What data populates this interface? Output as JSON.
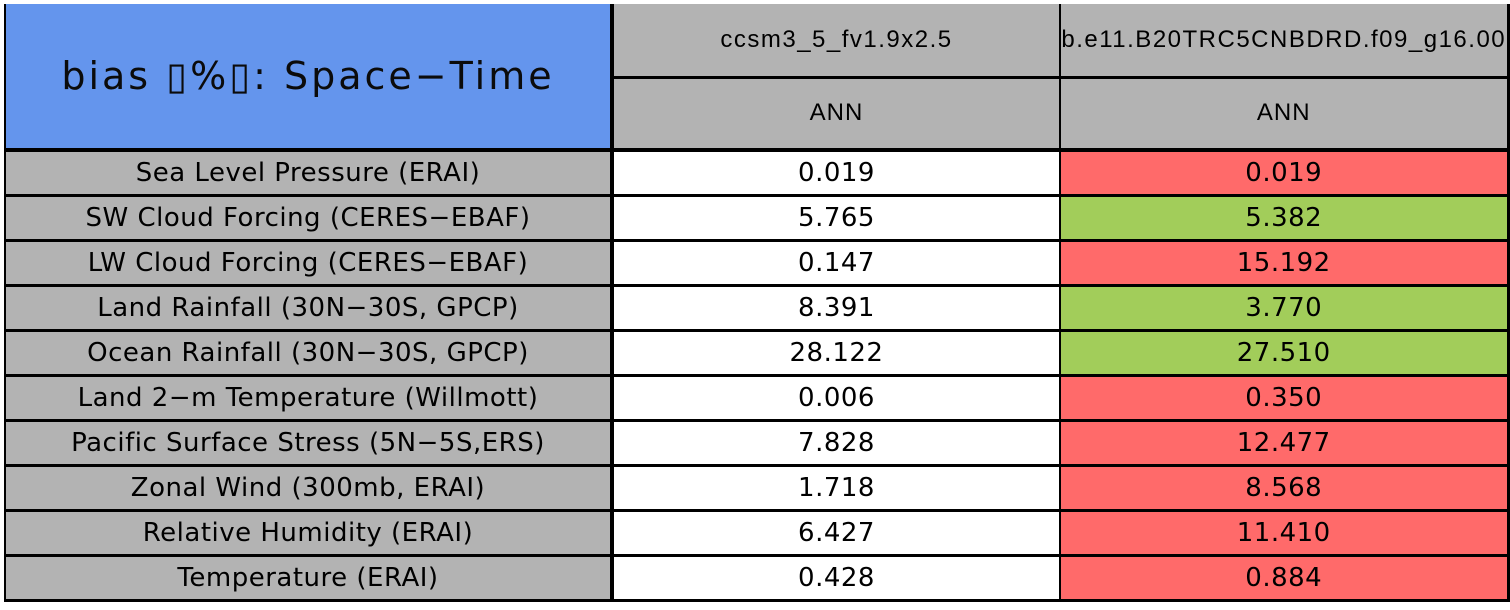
{
  "table": {
    "title": "bias ▯%▯: Space−Time",
    "case_headers": {
      "case1": "ccsm3_5_fv1.9x2.5",
      "case2": "b.e11.B20TRC5CNBDRD.f09_g16.00"
    },
    "season_headers": {
      "case1": "ANN",
      "case2": "ANN"
    },
    "rows": [
      {
        "label": "Sea Level Pressure (ERAI)",
        "case1": "0.019",
        "case2": "0.019",
        "case2_status": "worse"
      },
      {
        "label": "SW Cloud Forcing (CERES−EBAF)",
        "case1": "5.765",
        "case2": "5.382",
        "case2_status": "better"
      },
      {
        "label": "LW Cloud Forcing (CERES−EBAF)",
        "case1": "0.147",
        "case2": "15.192",
        "case2_status": "worse"
      },
      {
        "label": "Land Rainfall (30N−30S, GPCP)",
        "case1": "8.391",
        "case2": "3.770",
        "case2_status": "better"
      },
      {
        "label": "Ocean Rainfall (30N−30S, GPCP)",
        "case1": "28.122",
        "case2": "27.510",
        "case2_status": "better"
      },
      {
        "label": "Land 2−m Temperature (Willmott)",
        "case1": "0.006",
        "case2": "0.350",
        "case2_status": "worse"
      },
      {
        "label": "Pacific Surface Stress (5N−5S,ERS)",
        "case1": "7.828",
        "case2": "12.477",
        "case2_status": "worse"
      },
      {
        "label": "Zonal Wind (300mb, ERAI)",
        "case1": "1.718",
        "case2": "8.568",
        "case2_status": "worse"
      },
      {
        "label": "Relative Humidity (ERAI)",
        "case1": "6.427",
        "case2": "11.410",
        "case2_status": "worse"
      },
      {
        "label": "Temperature (ERAI)",
        "case1": "0.428",
        "case2": "0.884",
        "case2_status": "worse"
      }
    ],
    "colors": {
      "title_bg": "#6495ED",
      "header_bg": "#B3B3B3",
      "label_bg": "#B3B3B3",
      "value_bg": "#FFFFFF",
      "better_bg": "#A2CD5A",
      "worse_bg": "#FF6A6A",
      "border": "#000000"
    }
  }
}
